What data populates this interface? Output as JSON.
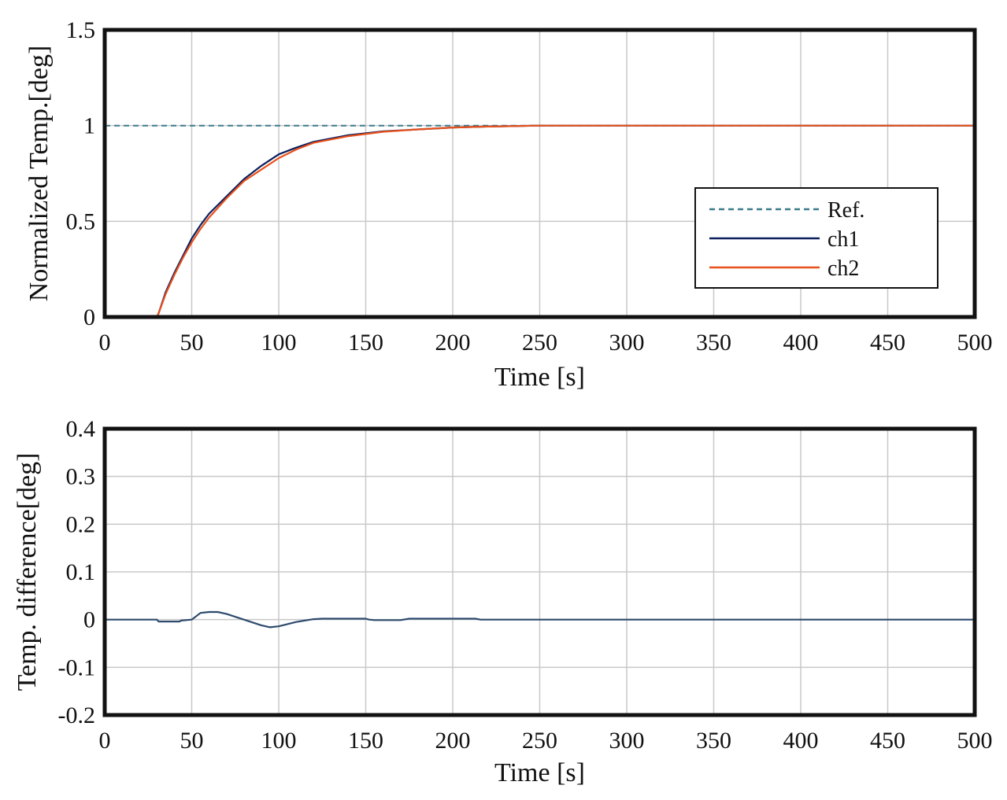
{
  "colors": {
    "ref": "#3a7a8c",
    "ch1": "#0a1f5c",
    "ch2": "#e8501c",
    "diff": "#2e4a6e",
    "grid": "#c8c8c8"
  },
  "chart_data": [
    {
      "type": "line",
      "xlabel": "Time [s]",
      "ylabel": "Normalized Temp.[deg]",
      "xlim": [
        0,
        500
      ],
      "ylim": [
        0,
        1.5
      ],
      "xticks": [
        "0",
        "50",
        "100",
        "150",
        "200",
        "250",
        "300",
        "350",
        "400",
        "450",
        "500"
      ],
      "yticks": [
        "0",
        "0.5",
        "1",
        "1.5"
      ],
      "grid": true,
      "legend_position": "center-right",
      "series": [
        {
          "name": "Ref.",
          "style": "dashed",
          "x": [
            0,
            500
          ],
          "y": [
            1,
            1
          ]
        },
        {
          "name": "ch1",
          "style": "solid",
          "x": [
            0,
            30,
            31,
            35,
            40,
            45,
            50,
            55,
            60,
            70,
            80,
            90,
            100,
            110,
            120,
            140,
            160,
            180,
            200,
            220,
            250,
            500
          ],
          "y": [
            0,
            0,
            0.02,
            0.13,
            0.23,
            0.32,
            0.41,
            0.48,
            0.54,
            0.63,
            0.72,
            0.79,
            0.85,
            0.885,
            0.915,
            0.95,
            0.97,
            0.98,
            0.99,
            0.995,
            1.0,
            1.0
          ]
        },
        {
          "name": "ch2",
          "style": "solid",
          "x": [
            0,
            30,
            31,
            35,
            40,
            45,
            50,
            55,
            60,
            70,
            80,
            90,
            100,
            110,
            120,
            140,
            160,
            180,
            200,
            220,
            250,
            500
          ],
          "y": [
            0,
            0,
            0.02,
            0.12,
            0.22,
            0.31,
            0.39,
            0.46,
            0.52,
            0.62,
            0.71,
            0.77,
            0.83,
            0.875,
            0.91,
            0.945,
            0.968,
            0.98,
            0.99,
            0.995,
            1.0,
            1.0
          ]
        }
      ]
    },
    {
      "type": "line",
      "xlabel": "Time [s]",
      "ylabel": "Temp. difference[deg]",
      "xlim": [
        0,
        500
      ],
      "ylim": [
        -0.2,
        0.4
      ],
      "xticks": [
        "0",
        "50",
        "100",
        "150",
        "200",
        "250",
        "300",
        "350",
        "400",
        "450",
        "500"
      ],
      "yticks": [
        "-0.2",
        "-0.1",
        "0",
        "0.1",
        "0.2",
        "0.3",
        "0.4"
      ],
      "grid": true,
      "series": [
        {
          "style": "solid",
          "x": [
            0,
            30,
            31,
            43,
            44,
            50,
            55,
            60,
            65,
            70,
            80,
            90,
            95,
            100,
            110,
            120,
            125,
            150,
            152,
            155,
            170,
            175,
            200,
            213,
            216,
            500
          ],
          "y": [
            0,
            0,
            -0.004,
            -0.004,
            -0.002,
            0,
            0.014,
            0.016,
            0.016,
            0.012,
            0.0,
            -0.012,
            -0.016,
            -0.014,
            -0.005,
            0.001,
            0.002,
            0.002,
            0.0,
            -0.001,
            -0.001,
            0.002,
            0.002,
            0.002,
            0,
            0
          ]
        }
      ]
    }
  ]
}
